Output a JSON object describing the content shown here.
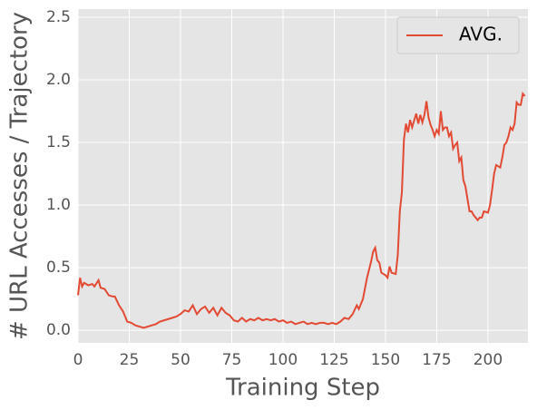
{
  "chart_data": {
    "type": "line",
    "xlabel": "Training Step",
    "ylabel": "# URL Accesses / Trajectory",
    "x": [
      0,
      1,
      2,
      3,
      5,
      7,
      8,
      10,
      11,
      13,
      15,
      17,
      18,
      20,
      22,
      24,
      26,
      28,
      30,
      32,
      34,
      36,
      38,
      40,
      42,
      44,
      46,
      48,
      50,
      52,
      54,
      56,
      58,
      60,
      62,
      64,
      66,
      68,
      70,
      72,
      74,
      76,
      78,
      80,
      82,
      84,
      86,
      88,
      90,
      92,
      94,
      96,
      98,
      100,
      102,
      104,
      106,
      108,
      110,
      112,
      114,
      116,
      118,
      120,
      122,
      124,
      126,
      128,
      130,
      132,
      134,
      136,
      137,
      139,
      141,
      143,
      144,
      145,
      146,
      147,
      148,
      150,
      151,
      152,
      153,
      155,
      156,
      157,
      158,
      159,
      160,
      161,
      162,
      163,
      165,
      166,
      167,
      168,
      169,
      170,
      171,
      172,
      173,
      174,
      175,
      176,
      177,
      178,
      179,
      180,
      181,
      182,
      183,
      184,
      185,
      186,
      187,
      188,
      189,
      190,
      191,
      192,
      193,
      195,
      196,
      197,
      198,
      200,
      201,
      202,
      203,
      204,
      205,
      206,
      207,
      208,
      209,
      210,
      211,
      212,
      213,
      214,
      215,
      216,
      217,
      218
    ],
    "series": [
      {
        "name": "AVG.",
        "color": "#E24A33",
        "values": [
          0.28,
          0.42,
          0.35,
          0.38,
          0.36,
          0.37,
          0.35,
          0.4,
          0.34,
          0.33,
          0.28,
          0.27,
          0.27,
          0.2,
          0.15,
          0.07,
          0.06,
          0.04,
          0.03,
          0.02,
          0.03,
          0.04,
          0.05,
          0.07,
          0.08,
          0.09,
          0.1,
          0.11,
          0.13,
          0.16,
          0.15,
          0.2,
          0.13,
          0.17,
          0.19,
          0.14,
          0.18,
          0.12,
          0.18,
          0.14,
          0.12,
          0.08,
          0.07,
          0.1,
          0.07,
          0.09,
          0.08,
          0.1,
          0.08,
          0.09,
          0.08,
          0.09,
          0.07,
          0.08,
          0.06,
          0.07,
          0.05,
          0.06,
          0.07,
          0.05,
          0.06,
          0.05,
          0.06,
          0.06,
          0.05,
          0.06,
          0.05,
          0.07,
          0.1,
          0.09,
          0.13,
          0.2,
          0.17,
          0.25,
          0.42,
          0.55,
          0.63,
          0.66,
          0.56,
          0.54,
          0.46,
          0.44,
          0.42,
          0.51,
          0.46,
          0.45,
          0.6,
          0.95,
          1.1,
          1.52,
          1.65,
          1.58,
          1.68,
          1.62,
          1.73,
          1.65,
          1.72,
          1.66,
          1.72,
          1.83,
          1.7,
          1.64,
          1.6,
          1.55,
          1.6,
          1.57,
          1.75,
          1.6,
          1.62,
          1.62,
          1.55,
          1.58,
          1.45,
          1.48,
          1.5,
          1.35,
          1.38,
          1.2,
          1.15,
          1.05,
          0.95,
          0.95,
          0.92,
          0.88,
          0.9,
          0.9,
          0.95,
          0.94,
          1.0,
          1.12,
          1.25,
          1.32,
          1.31,
          1.3,
          1.38,
          1.48,
          1.5,
          1.55,
          1.62,
          1.6,
          1.65,
          1.82,
          1.8,
          1.8,
          1.89,
          1.87
        ]
      }
    ],
    "xlim": [
      0,
      219.5
    ],
    "ylim": [
      -0.1,
      2.565
    ],
    "xticks": [
      0,
      25,
      50,
      75,
      100,
      125,
      150,
      175,
      200
    ],
    "yticks": [
      {
        "value": 0,
        "label": "0.0"
      },
      0.5,
      {
        "value": 1,
        "label": "1.0"
      },
      1.5,
      {
        "value": 2,
        "label": "2.0"
      },
      2.5
    ],
    "grid": true,
    "legend": "upper right"
  }
}
